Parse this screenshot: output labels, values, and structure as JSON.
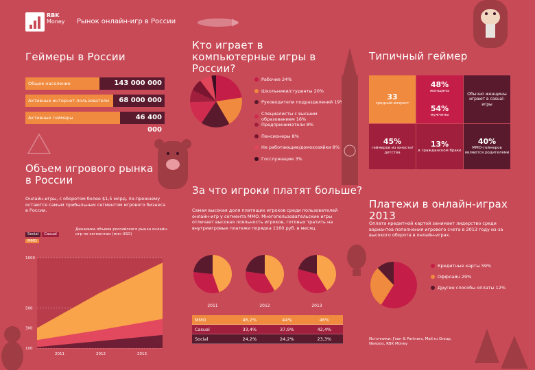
{
  "header": {
    "logo_line1": "RBK",
    "logo_line2": "Money",
    "title": "Рынок онлайн-игр в России"
  },
  "gamers": {
    "title": "Геймеры в России",
    "rows": [
      {
        "label": "Общее население",
        "value": "143 000 000"
      },
      {
        "label": "Активные интернет-пользователи",
        "value": "68 000 000"
      },
      {
        "label": "Активные геймеры",
        "value": "46 400 000"
      }
    ]
  },
  "market": {
    "title": "Объем игрового рынка в России",
    "text": "Онлайн-игры, с оборотом более $1,5 млрд, по-прежнему остаются самым прибыльным сегментом игрового бизнеса в России.",
    "chart_title": "Динамика объема российского рынка онлайн-игр по сегментам (млн USD)",
    "legend": [
      "Social",
      "Casual",
      "MMO"
    ]
  },
  "who": {
    "title": "Кто играет в компьютерные игры в России?",
    "legend": [
      {
        "label": "Рабочие 24%",
        "color": "#c41e48"
      },
      {
        "label": "Школьники/студенты 20%",
        "color": "#f08a3e"
      },
      {
        "label": "Руководители подразделений 19%",
        "color": "#5a1a2e"
      },
      {
        "label": "Специалисты с высшим образованием 16%",
        "color": "#d02c50"
      },
      {
        "label": "Предприниматели 8%",
        "color": "#a01f3c"
      },
      {
        "label": "Пенсионеры 8%",
        "color": "#7a1530"
      },
      {
        "label": "Не работающие/домохозяйки 8%",
        "color": "#e0455a"
      },
      {
        "label": "Госслужащие 3%",
        "color": "#3d0f22"
      }
    ]
  },
  "typical": {
    "title": "Типичный геймер",
    "tiles": [
      {
        "num": "33",
        "sub": "средний возраст"
      },
      {
        "num": "48%",
        "sub": "женщины"
      },
      {
        "num": "",
        "sub": "Обычно женщины играют в casual-игры"
      },
      {
        "num": "54%",
        "sub": "мужчины"
      },
      {
        "num": "45%",
        "sub": "геймеров из юности/детства"
      },
      {
        "num": "13%",
        "sub": "в гражданском браке"
      },
      {
        "num": "40%",
        "sub": "MMO-геймеров являются родителями"
      }
    ]
  },
  "pay": {
    "title": "За что игроки платят больше?",
    "text": "Самая высокая доля платящих игроков среди пользователей онлайн-игр у сегмента MMO. Многопользовательские игры отличает высокая лояльность игроков, готовых тратить на внутриигровые платежи порядка 1160 руб. в месяц.",
    "years": [
      "2011",
      "2012",
      "2013"
    ],
    "table": [
      {
        "name": "MMO",
        "values": [
          "46,2%",
          "44%",
          "46%"
        ]
      },
      {
        "name": "Casual",
        "values": [
          "33,4%",
          "37,9%",
          "42,4%"
        ]
      },
      {
        "name": "Social",
        "values": [
          "24,2%",
          "24,2%",
          "23,3%"
        ]
      }
    ]
  },
  "payments": {
    "title": "Платежи в онлайн-играх 2013",
    "text": "Оплата кредитной картой занимает лидерство среди вариантов пополнения игрового счета в 2013 году из-за высокого оборота в онлайн-играх.",
    "legend": [
      {
        "label": "Кредитные карты 59%",
        "color": "#c41e48"
      },
      {
        "label": "Оффлайн 29%",
        "color": "#f08a3e"
      },
      {
        "label": "Другие способы оплаты 12%",
        "color": "#5a1a2e"
      }
    ]
  },
  "sources": {
    "line1": "Источники: J'son & Partners, Mail.ru Group,",
    "line2": "Newzoo, RBK Money"
  },
  "chart_data": [
    {
      "type": "pie",
      "title": "Кто играет в компьютерные игры в России?",
      "categories": [
        "Рабочие",
        "Школьники/студенты",
        "Руководители подразделений",
        "Специалисты с высшим образованием",
        "Предприниматели",
        "Пенсионеры",
        "Не работающие/домохозяйки",
        "Госслужащие"
      ],
      "values": [
        24,
        20,
        19,
        16,
        8,
        8,
        8,
        3
      ]
    },
    {
      "type": "area",
      "title": "Динамика объема российского рынка онлайн-игр по сегментам (млн USD)",
      "x": [
        "2011",
        "2012",
        "2013"
      ],
      "ylim": [
        100,
        1000
      ],
      "yticks": [
        "100",
        "300",
        "500",
        "1000"
      ],
      "series": [
        {
          "name": "MMO",
          "values": [
            300,
            650,
            950
          ]
        },
        {
          "name": "Casual",
          "values": [
            180,
            280,
            390
          ]
        },
        {
          "name": "Social",
          "values": [
            110,
            170,
            230
          ]
        }
      ]
    },
    {
      "type": "pie",
      "title": "2011",
      "categories": [
        "MMO",
        "Casual",
        "Social"
      ],
      "values": [
        46.2,
        33.4,
        24.2
      ]
    },
    {
      "type": "pie",
      "title": "2012",
      "categories": [
        "MMO",
        "Casual",
        "Social"
      ],
      "values": [
        44,
        37.9,
        24.2
      ]
    },
    {
      "type": "pie",
      "title": "2013",
      "categories": [
        "MMO",
        "Casual",
        "Social"
      ],
      "values": [
        46,
        42.4,
        23.3
      ]
    },
    {
      "type": "pie",
      "title": "Платежи в онлайн-играх 2013",
      "categories": [
        "Кредитные карты",
        "Оффлайн",
        "Другие способы оплаты"
      ],
      "values": [
        59,
        29,
        12
      ]
    }
  ]
}
